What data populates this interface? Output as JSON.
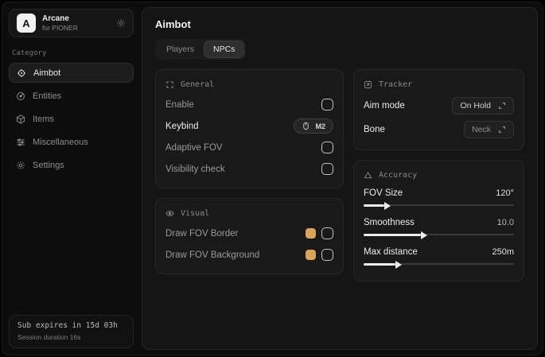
{
  "colors": {
    "accent_swatch": "#d9a55c",
    "card_bg": "#191919",
    "panel_bg": "#151515",
    "window_bg": "#0d0d0d",
    "text_bright": "#ededed",
    "text_dim": "#9a9a9a"
  },
  "sidebar": {
    "logo_letter": "A",
    "app_name": "Arcane",
    "app_subtitle": "for PIONER",
    "header_icon": "gear-icon",
    "category_label": "Category",
    "items": [
      {
        "label": "Aimbot",
        "icon": "crosshair-icon",
        "selected": true
      },
      {
        "label": "Entities",
        "icon": "radar-icon",
        "selected": false
      },
      {
        "label": "Items",
        "icon": "cube-icon",
        "selected": false
      },
      {
        "label": "Miscellaneous",
        "icon": "sliders-icon",
        "selected": false
      },
      {
        "label": "Settings",
        "icon": "gear-icon",
        "selected": false
      }
    ],
    "footer": {
      "sub_expiry": "Sub expires in 15d 03h",
      "session_duration": "Session duration 16s"
    }
  },
  "main": {
    "title": "Aimbot",
    "tabs": [
      {
        "label": "Players",
        "selected": false
      },
      {
        "label": "NPCs",
        "selected": true
      }
    ],
    "sections": {
      "general": {
        "title": "General",
        "icon": "scan-icon",
        "rows": [
          {
            "label": "Enable",
            "control": "checkbox",
            "checked": false
          },
          {
            "label": "Keybind",
            "control": "keybind",
            "value": "M2",
            "icon": "mouse-icon"
          },
          {
            "label": "Adaptive FOV",
            "control": "checkbox",
            "checked": false
          },
          {
            "label": "Visibility check",
            "control": "checkbox",
            "checked": false
          }
        ]
      },
      "visual": {
        "title": "Visual",
        "icon": "eye-icon",
        "rows": [
          {
            "label": "Draw FOV Border",
            "control": "color+checkbox",
            "color": "#d9a55c",
            "checked": false
          },
          {
            "label": "Draw FOV Background",
            "control": "color+checkbox",
            "color": "#d9a55c",
            "checked": false
          }
        ]
      },
      "tracker": {
        "title": "Tracker",
        "icon": "target-box-icon",
        "rows": [
          {
            "label": "Aim mode",
            "control": "select",
            "value": "On Hold"
          },
          {
            "label": "Bone",
            "control": "select",
            "value": "Neck"
          }
        ]
      },
      "accuracy": {
        "title": "Accuracy",
        "icon": "triangle-icon",
        "sliders": [
          {
            "label": "FOV Size",
            "value": "120°",
            "percent": 14
          },
          {
            "label": "Smoothness",
            "value": "10.0",
            "percent": 38
          },
          {
            "label": "Max distance",
            "value": "250m",
            "percent": 21
          }
        ]
      }
    }
  }
}
